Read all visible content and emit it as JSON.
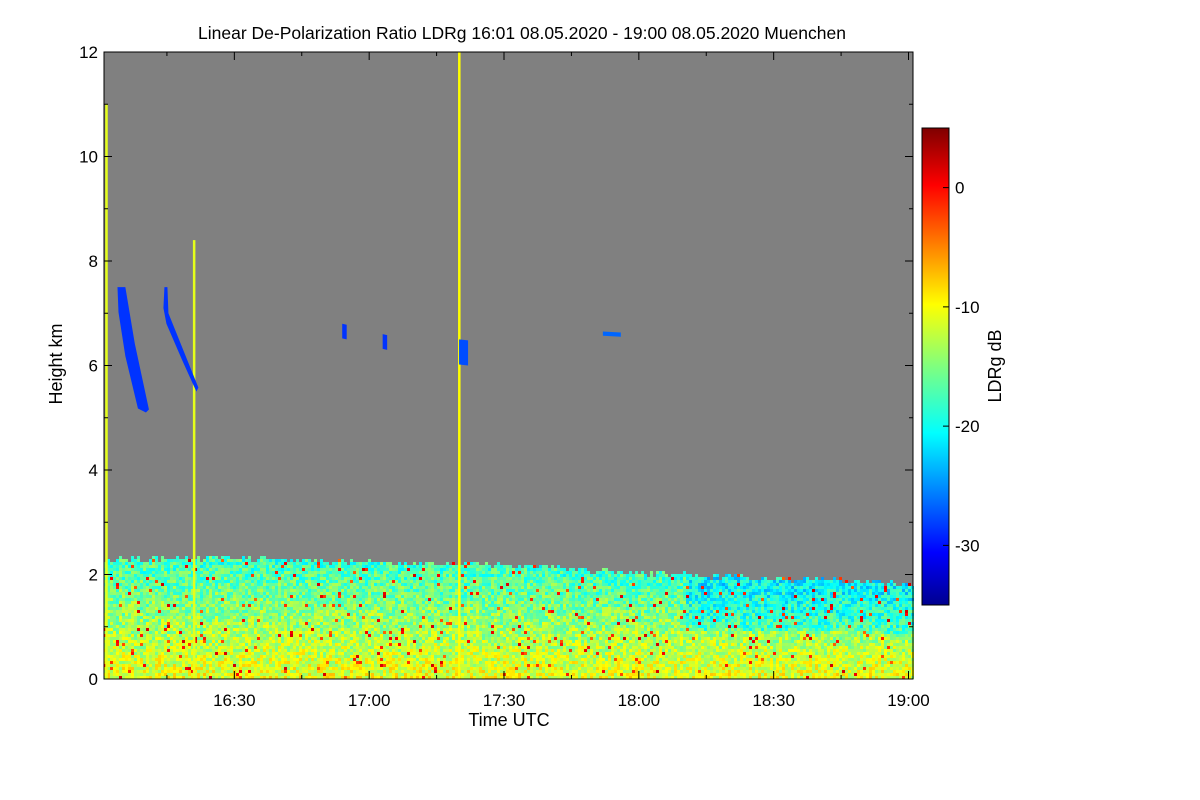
{
  "chart_data": {
    "type": "heatmap",
    "title": "Linear De-Polarization Ratio LDRg   16:01 08.05.2020 - 19:00 08.05.2020 Muenchen",
    "xlabel": "Time UTC",
    "ylabel": "Height km",
    "x_range": [
      "16:01",
      "19:00"
    ],
    "x_tick_labels": [
      {
        "time": "16:30",
        "minutes": 990
      },
      {
        "time": "17:00",
        "minutes": 1020
      },
      {
        "time": "17:30",
        "minutes": 1050
      },
      {
        "time": "18:00",
        "minutes": 1080
      },
      {
        "time": "18:30",
        "minutes": 1110
      },
      {
        "time": "19:00",
        "minutes": 1140
      }
    ],
    "x_minutes_range": [
      961,
      1141
    ],
    "ylim": [
      0,
      12
    ],
    "y_ticks": [
      0,
      2,
      4,
      6,
      8,
      10,
      12
    ],
    "colorbar": {
      "label": "LDRg dB",
      "range": [
        -35,
        5
      ],
      "ticks": [
        0,
        -10,
        -20,
        -30
      ],
      "colormap": "jet"
    },
    "no_signal_color": "#808080",
    "boundary_layer_top_km": [
      {
        "minutes": 962,
        "height": 2.25
      },
      {
        "minutes": 990,
        "height": 2.3
      },
      {
        "minutes": 1020,
        "height": 2.2
      },
      {
        "minutes": 1050,
        "height": 2.15
      },
      {
        "minutes": 1080,
        "height": 2.0
      },
      {
        "minutes": 1110,
        "height": 1.9
      },
      {
        "minutes": 1140,
        "height": 1.8
      }
    ],
    "cloud_features": [
      {
        "description": "cirrus fall streak",
        "minutes_start": 964,
        "minutes_end": 971,
        "height_top": 7.5,
        "height_bottom": 5.1,
        "ldr_db": -28
      },
      {
        "description": "cirrus patch",
        "minutes_start": 974,
        "minutes_end": 982,
        "height_top": 7.5,
        "height_bottom": 5.5,
        "ldr_db": -28
      },
      {
        "description": "isolated patch",
        "minutes_start": 1014,
        "minutes_end": 1015,
        "height_top": 6.8,
        "height_bottom": 6.5,
        "ldr_db": -28
      },
      {
        "description": "isolated patch",
        "minutes_start": 1023,
        "minutes_end": 1024,
        "height_top": 6.6,
        "height_bottom": 6.3,
        "ldr_db": -28
      },
      {
        "description": "isolated patch",
        "minutes_start": 1040,
        "minutes_end": 1042,
        "height_top": 6.5,
        "height_bottom": 6.0,
        "ldr_db": -27
      },
      {
        "description": "thin layer",
        "minutes_start": 1072,
        "minutes_end": 1076,
        "height_top": 6.65,
        "height_bottom": 6.55,
        "ldr_db": -26
      }
    ],
    "vertical_streaks": [
      {
        "minutes": 961.5,
        "height_top": 11.0,
        "ldr_db": -11
      },
      {
        "minutes": 981,
        "height_top": 8.4,
        "ldr_db": -11
      },
      {
        "minutes": 1040,
        "height_top": 12.0,
        "ldr_db": -10
      }
    ]
  }
}
